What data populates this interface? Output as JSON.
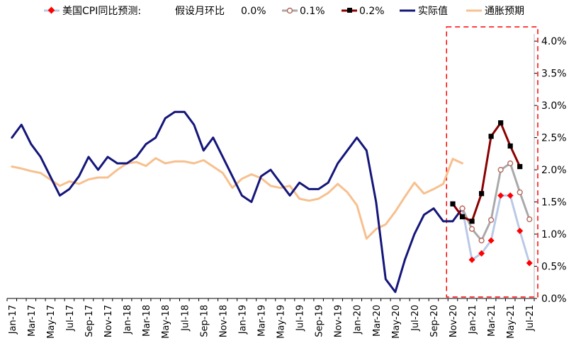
{
  "chart_data": {
    "type": "line",
    "title": "",
    "xlabel": "",
    "ylabel": "",
    "y_axis_side": "right",
    "ylim": [
      0,
      4.2
    ],
    "y_ticks": [
      "0.0%",
      "0.5%",
      "1.0%",
      "1.5%",
      "2.0%",
      "2.5%",
      "3.0%",
      "3.5%",
      "4.0%"
    ],
    "x_tick_labels": [
      "Jan-17",
      "Mar-17",
      "May-17",
      "Jul-17",
      "Sep-17",
      "Nov-17",
      "Jan-18",
      "Mar-18",
      "May-18",
      "Jul-18",
      "Sep-18",
      "Nov-18",
      "Jan-19",
      "Mar-19",
      "May-19",
      "Jul-19",
      "Sep-19",
      "Nov-19",
      "Jan-20",
      "Mar-20",
      "May-20",
      "Jul-20",
      "Sep-20",
      "Nov-20",
      "Jan-21",
      "Mar-21",
      "May-21",
      "Jul-21"
    ],
    "legend": {
      "prefix": "美国CPI同比预测:",
      "assume_label": "假设月环比",
      "placement": "top",
      "entries": [
        {
          "key": "f00",
          "label": "0.0%"
        },
        {
          "key": "f01",
          "label": "0.1%"
        },
        {
          "key": "f02",
          "label": "0.2%"
        },
        {
          "key": "actual",
          "label": "实际值"
        },
        {
          "key": "expect",
          "label": "通胀预期"
        }
      ]
    },
    "colors": {
      "actual": "#14167a",
      "expect": "#f7c08e",
      "f00_line": "#b9c9e6",
      "f00_marker": "#ff0000",
      "f01_line": "#a9a9a9",
      "f01_marker": "#b5695c",
      "f02_line": "#8b0000",
      "f02_marker": "#000000",
      "box": "#ff0000"
    },
    "series": [
      {
        "key": "actual",
        "name": "实际值",
        "start": "Jan-17",
        "values": [
          2.5,
          2.7,
          2.4,
          2.2,
          1.9,
          1.6,
          1.7,
          1.9,
          2.2,
          2.0,
          2.2,
          2.1,
          2.1,
          2.2,
          2.4,
          2.5,
          2.8,
          2.9,
          2.9,
          2.7,
          2.3,
          2.5,
          2.2,
          1.9,
          1.6,
          1.5,
          1.9,
          2.0,
          1.8,
          1.6,
          1.8,
          1.7,
          1.7,
          1.8,
          2.1,
          2.3,
          2.5,
          2.3,
          1.5,
          0.3,
          0.1,
          0.6,
          1.0,
          1.3,
          1.4,
          1.2,
          1.2,
          1.4
        ]
      },
      {
        "key": "expect",
        "name": "通胀预期",
        "start": "Jan-17",
        "values": [
          2.05,
          2.02,
          1.98,
          1.95,
          1.85,
          1.75,
          1.82,
          1.78,
          1.85,
          1.88,
          1.88,
          2.0,
          2.1,
          2.12,
          2.06,
          2.18,
          2.1,
          2.13,
          2.13,
          2.1,
          2.15,
          2.05,
          1.95,
          1.72,
          1.86,
          1.93,
          1.87,
          1.75,
          1.72,
          1.75,
          1.55,
          1.52,
          1.55,
          1.64,
          1.78,
          1.65,
          1.45,
          0.93,
          1.08,
          1.15,
          1.35,
          1.58,
          1.8,
          1.63,
          1.7,
          1.78,
          2.17,
          2.1
        ]
      },
      {
        "key": "f00",
        "name": "0.0%",
        "start": "Dec-20",
        "values": [
          1.4,
          0.6,
          0.7,
          0.9,
          1.6,
          1.6,
          1.05,
          0.55
        ]
      },
      {
        "key": "f01",
        "name": "0.1%",
        "start": "Dec-20",
        "values": [
          1.4,
          1.08,
          0.9,
          1.22,
          2.0,
          2.1,
          1.65,
          1.23
        ]
      },
      {
        "key": "f02",
        "name": "0.2%",
        "start": "Nov-20",
        "values": [
          1.47,
          1.27,
          1.2,
          1.63,
          2.52,
          2.73,
          2.37,
          2.05
        ]
      }
    ],
    "highlight_box": {
      "from": "Nov-20",
      "to": "Jul-21",
      "style": "dashed"
    },
    "grid": false
  }
}
